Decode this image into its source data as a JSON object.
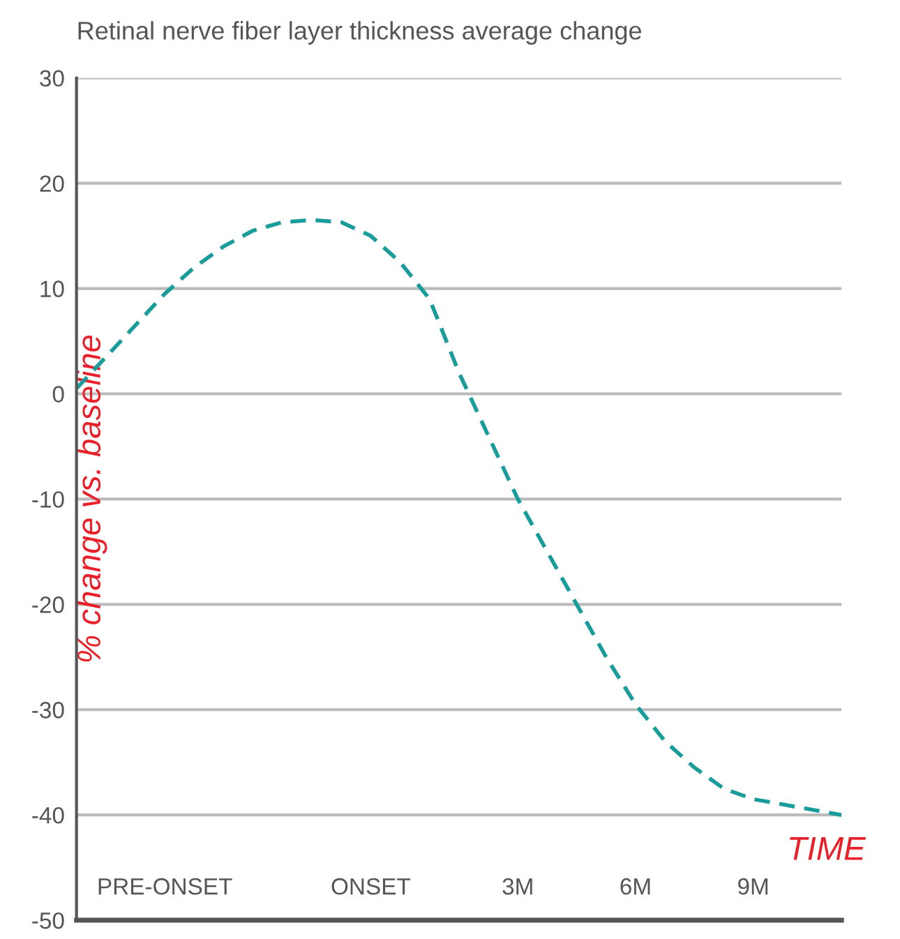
{
  "chart_data": {
    "type": "line",
    "title": "Retinal nerve fiber layer thickness average change",
    "xlabel": "TIME",
    "ylabel": "% change vs. baseline",
    "categories": [
      null,
      null,
      null,
      "PRE-ONSET",
      null,
      null,
      null,
      null,
      null,
      null,
      "ONSET",
      null,
      null,
      null,
      null,
      "3M",
      null,
      null,
      null,
      "6M",
      null,
      null,
      null,
      "9M",
      null,
      null,
      null
    ],
    "series": [
      {
        "color": "#199c9a",
        "values": [
          0.5,
          3.5,
          6.5,
          9.5,
          12,
          14,
          15.5,
          16.3,
          16.5,
          16.3,
          15,
          12.5,
          9,
          2,
          -4,
          -10,
          -15,
          -20,
          -25,
          -29.5,
          -33,
          -35.5,
          -37.5,
          -38.5,
          -39,
          -39.5,
          -40
        ]
      }
    ],
    "ylim": [
      -50,
      30
    ],
    "yticks": [
      -50,
      -40,
      -30,
      -20,
      -10,
      0,
      10,
      20,
      30
    ],
    "grid": "y",
    "legend": false,
    "marker": "none",
    "line_style": "dashed"
  }
}
